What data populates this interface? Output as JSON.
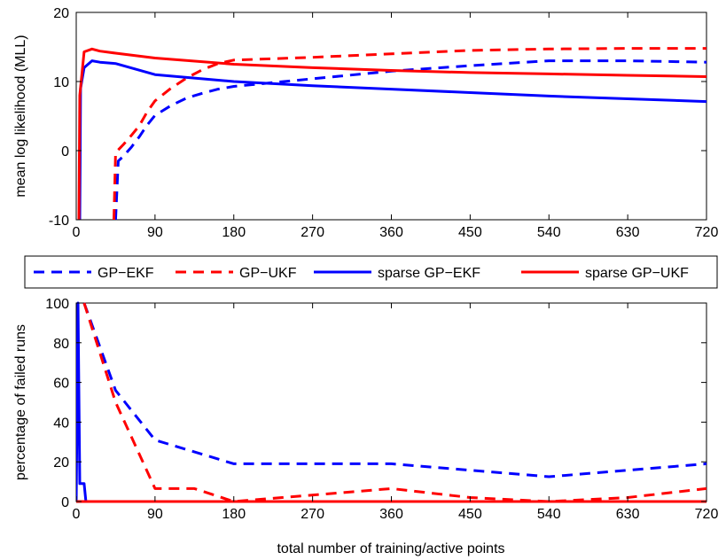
{
  "chart_data": [
    {
      "type": "line",
      "title": "",
      "xlabel": "",
      "ylabel": "mean log likelihood (MLL)",
      "xlim": [
        0,
        720
      ],
      "ylim": [
        -10,
        20
      ],
      "xticks": [
        0,
        90,
        180,
        270,
        360,
        450,
        540,
        630,
        720
      ],
      "yticks": [
        -10,
        0,
        10,
        20
      ],
      "series": [
        {
          "name": "GP−EKF",
          "color": "#0000ff",
          "dash": true,
          "points": [
            [
              45,
              -10
            ],
            [
              48,
              -1.5
            ],
            [
              54,
              -0.8
            ],
            [
              63,
              0.5
            ],
            [
              72,
              2
            ],
            [
              81,
              3.7
            ],
            [
              90,
              5.1
            ],
            [
              108,
              6.5
            ],
            [
              126,
              7.6
            ],
            [
              144,
              8.3
            ],
            [
              162,
              8.9
            ],
            [
              180,
              9.3
            ],
            [
              270,
              10.4
            ],
            [
              360,
              11.5
            ],
            [
              450,
              12.3
            ],
            [
              540,
              13.0
            ],
            [
              630,
              13.0
            ],
            [
              720,
              12.8
            ]
          ]
        },
        {
          "name": "GP−UKF",
          "color": "#ff0000",
          "dash": true,
          "points": [
            [
              43,
              -10
            ],
            [
              45,
              -0.3
            ],
            [
              54,
              0.9
            ],
            [
              63,
              2.2
            ],
            [
              72,
              3.6
            ],
            [
              81,
              5.6
            ],
            [
              90,
              7.2
            ],
            [
              108,
              9.0
            ],
            [
              126,
              10.5
            ],
            [
              144,
              11.7
            ],
            [
              162,
              12.6
            ],
            [
              180,
              13.1
            ],
            [
              270,
              13.5
            ],
            [
              360,
              14.0
            ],
            [
              450,
              14.5
            ],
            [
              540,
              14.7
            ],
            [
              630,
              14.8
            ],
            [
              720,
              14.8
            ]
          ]
        },
        {
          "name": "sparse GP−EKF",
          "color": "#0000ff",
          "dash": false,
          "points": [
            [
              4,
              -10
            ],
            [
              5,
              9
            ],
            [
              9,
              12
            ],
            [
              18,
              13
            ],
            [
              27,
              12.8
            ],
            [
              45,
              12.6
            ],
            [
              90,
              11
            ],
            [
              180,
              10
            ],
            [
              270,
              9.4
            ],
            [
              360,
              8.9
            ],
            [
              450,
              8.4
            ],
            [
              540,
              7.9
            ],
            [
              630,
              7.5
            ],
            [
              720,
              7.1
            ]
          ]
        },
        {
          "name": "sparse GP−UKF",
          "color": "#ff0000",
          "dash": false,
          "points": [
            [
              3,
              -10
            ],
            [
              4,
              8
            ],
            [
              9,
              14.3
            ],
            [
              18,
              14.7
            ],
            [
              27,
              14.4
            ],
            [
              45,
              14.1
            ],
            [
              90,
              13.4
            ],
            [
              180,
              12.5
            ],
            [
              270,
              12
            ],
            [
              360,
              11.6
            ],
            [
              450,
              11.3
            ],
            [
              540,
              11.1
            ],
            [
              630,
              10.9
            ],
            [
              720,
              10.7
            ]
          ]
        }
      ]
    },
    {
      "type": "line",
      "title": "",
      "xlabel": "total number of training/active points",
      "ylabel": "percentage of failed runs",
      "xlim": [
        0,
        720
      ],
      "ylim": [
        0,
        100
      ],
      "xticks": [
        0,
        90,
        180,
        270,
        360,
        450,
        540,
        630,
        720
      ],
      "yticks": [
        0,
        20,
        40,
        60,
        80,
        100
      ],
      "series": [
        {
          "name": "GP−EKF",
          "color": "#0000ff",
          "dash": true,
          "points": [
            [
              9,
              100
            ],
            [
              45,
              56
            ],
            [
              90,
              31
            ],
            [
              180,
              19
            ],
            [
              270,
              19
            ],
            [
              360,
              19
            ],
            [
              540,
              12.5
            ],
            [
              720,
              19
            ]
          ]
        },
        {
          "name": "GP−UKF",
          "color": "#ff0000",
          "dash": true,
          "points": [
            [
              9,
              100
            ],
            [
              45,
              50
            ],
            [
              90,
              6.5
            ],
            [
              135,
              6.5
            ],
            [
              180,
              0
            ],
            [
              360,
              6.5
            ],
            [
              450,
              2
            ],
            [
              540,
              0
            ],
            [
              630,
              2
            ],
            [
              720,
              6.5
            ]
          ]
        },
        {
          "name": "sparse GP−EKF",
          "color": "#0000ff",
          "dash": false,
          "points": [
            [
              0,
              0
            ],
            [
              2,
              100
            ],
            [
              4,
              9
            ],
            [
              9,
              9
            ],
            [
              11,
              0
            ],
            [
              720,
              0
            ]
          ]
        },
        {
          "name": "sparse GP−UKF",
          "color": "#ff0000",
          "dash": false,
          "points": [
            [
              0,
              0
            ],
            [
              720,
              0
            ]
          ]
        }
      ]
    }
  ],
  "legend": {
    "placement": "between-plots",
    "entries": [
      {
        "label": "GP−EKF",
        "color": "#0000ff",
        "dash": true
      },
      {
        "label": "GP−UKF",
        "color": "#ff0000",
        "dash": true
      },
      {
        "label": "sparse GP−EKF",
        "color": "#0000ff",
        "dash": false
      },
      {
        "label": "sparse GP−UKF",
        "color": "#ff0000",
        "dash": false
      }
    ]
  }
}
